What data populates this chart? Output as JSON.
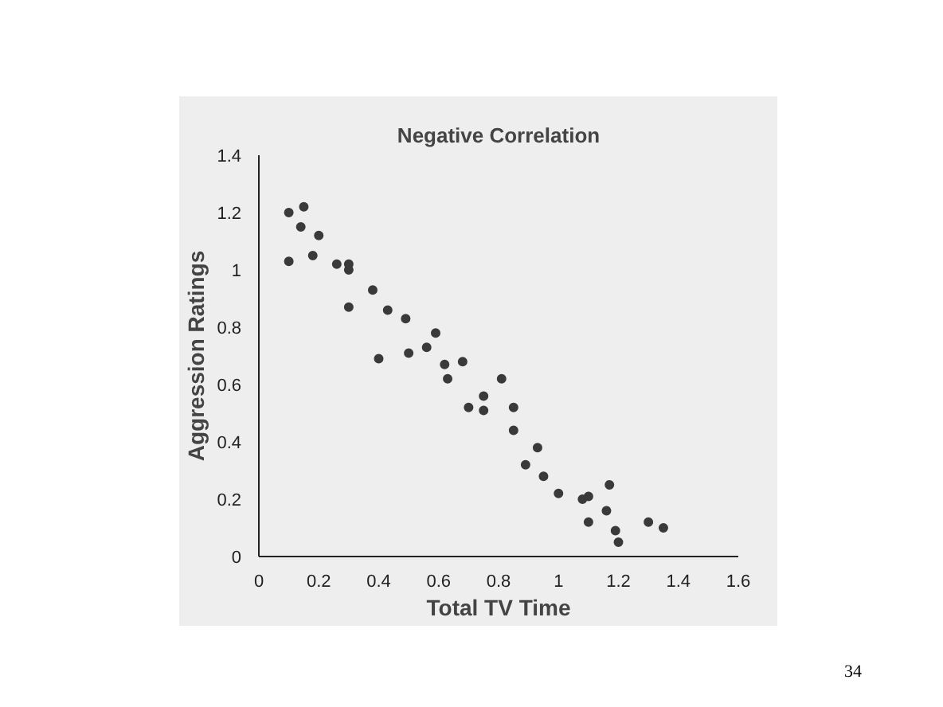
{
  "chart_data": {
    "type": "scatter",
    "title": "Negative Correlation",
    "xlabel": "Total TV Time",
    "ylabel": "Aggression Ratings",
    "x": [
      0.1,
      0.15,
      0.14,
      0.2,
      0.1,
      0.18,
      0.26,
      0.3,
      0.3,
      0.38,
      0.3,
      0.43,
      0.49,
      0.59,
      0.4,
      0.5,
      0.56,
      0.62,
      0.68,
      0.63,
      0.81,
      0.75,
      0.7,
      0.75,
      0.85,
      0.85,
      0.93,
      0.89,
      0.95,
      1.0,
      1.08,
      1.1,
      1.17,
      1.16,
      1.1,
      1.19,
      1.2,
      1.3,
      1.35
    ],
    "series": [
      {
        "color": "#3a3a3a",
        "values": [
          1.2,
          1.22,
          1.15,
          1.12,
          1.03,
          1.05,
          1.02,
          1.02,
          1.0,
          0.93,
          0.87,
          0.86,
          0.83,
          0.78,
          0.69,
          0.71,
          0.73,
          0.67,
          0.68,
          0.62,
          0.62,
          0.56,
          0.52,
          0.51,
          0.52,
          0.44,
          0.38,
          0.32,
          0.28,
          0.22,
          0.2,
          0.21,
          0.25,
          0.16,
          0.12,
          0.09,
          0.05,
          0.12,
          0.1
        ]
      }
    ],
    "xlim": [
      0,
      1.6
    ],
    "ylim": [
      0,
      1.4
    ],
    "xticks": [
      0,
      0.2,
      0.4,
      0.6,
      0.8,
      1,
      1.2,
      1.4,
      1.6
    ],
    "yticks": [
      0,
      0.2,
      0.4,
      0.6,
      0.8,
      1,
      1.2,
      1.4
    ],
    "grid": false,
    "marker": "circle",
    "annotations": [
      "34"
    ]
  }
}
